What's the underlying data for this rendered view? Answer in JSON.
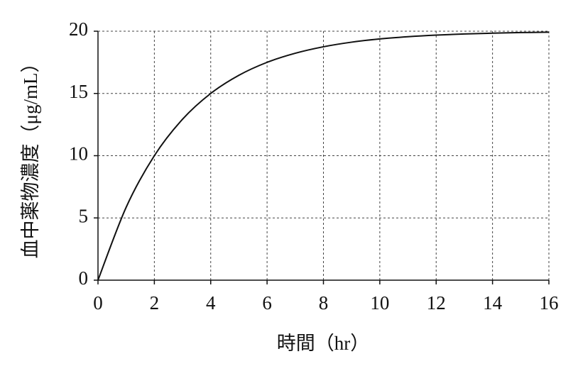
{
  "chart_data": {
    "type": "line",
    "x_label": "時間（hr）",
    "y_label": "血中薬物濃度（μg/mL）",
    "x": [
      0,
      1,
      2,
      3,
      4,
      5,
      6,
      7,
      8,
      9,
      10,
      11,
      12,
      13,
      14,
      15,
      16
    ],
    "series": [
      {
        "color": "#111111",
        "values": [
          0,
          5.86,
          10,
          12.93,
          15,
          16.46,
          17.5,
          18.23,
          18.75,
          19.12,
          19.38,
          19.56,
          19.69,
          19.78,
          19.84,
          19.89,
          19.92
        ]
      }
    ],
    "xlim": [
      0,
      16
    ],
    "xticks": [
      0,
      2,
      4,
      6,
      8,
      10,
      12,
      14,
      16
    ],
    "ylim": [
      0,
      20
    ],
    "yticks": [
      0,
      5,
      10,
      15,
      20
    ],
    "grid": true
  }
}
